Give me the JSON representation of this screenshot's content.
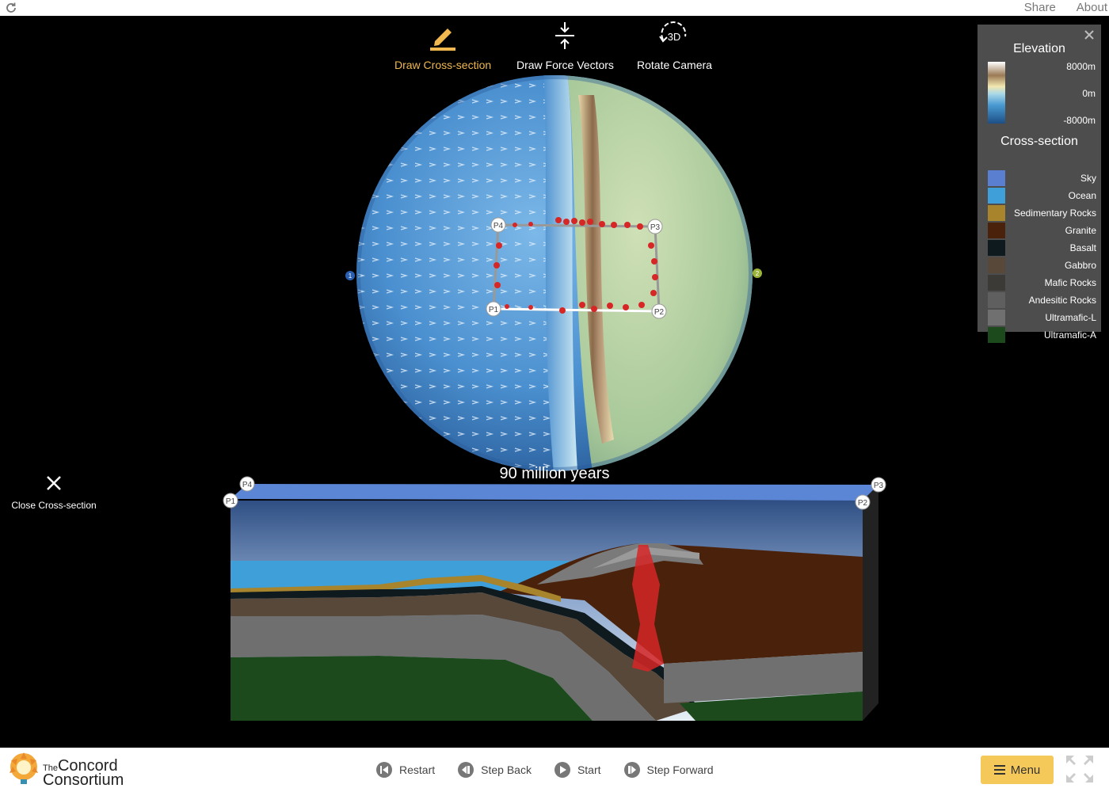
{
  "topbar": {
    "share": "Share",
    "about": "About",
    "reload_icon": "reload-icon"
  },
  "toolbar": {
    "draw_cross_section": "Draw Cross-section",
    "draw_force_vectors": "Draw Force Vectors",
    "rotate_camera": "Rotate Camera",
    "rotate_badge": "3D"
  },
  "globe": {
    "boundary_points": [
      "P1",
      "P2",
      "P3",
      "P4"
    ],
    "plate_markers": [
      "1",
      "2"
    ]
  },
  "age_label": "90 million years",
  "close_cross_section": "Close Cross-section",
  "cross_section": {
    "corner_points": [
      "P1",
      "P2",
      "P3",
      "P4"
    ]
  },
  "legend": {
    "elevation_title": "Elevation",
    "elevation_ticks": [
      "8000m",
      "0m",
      "-8000m"
    ],
    "cross_section_title": "Cross-section",
    "items": [
      {
        "label": "Sky",
        "color": "#5b7fd0"
      },
      {
        "label": "Ocean",
        "color": "#3f9fd8"
      },
      {
        "label": "Sedimentary Rocks",
        "color": "#a8842c"
      },
      {
        "label": "Granite",
        "color": "#4a220c"
      },
      {
        "label": "Basalt",
        "color": "#0e1a1e"
      },
      {
        "label": "Gabbro",
        "color": "#57483a"
      },
      {
        "label": "Mafic Rocks",
        "color": "#3b3a37"
      },
      {
        "label": "Andesitic Rocks",
        "color": "#5f5f5f"
      },
      {
        "label": "Ultramafic-L",
        "color": "#707070"
      },
      {
        "label": "Ultramafic-A",
        "color": "#1d4a1d"
      }
    ]
  },
  "logo": {
    "line1_small": "The",
    "line1": "Concord",
    "line2": "Consortium"
  },
  "controls": {
    "restart": "Restart",
    "step_back": "Step Back",
    "start": "Start",
    "step_forward": "Step Forward"
  },
  "menu": {
    "label": "Menu"
  },
  "colors": {
    "accent": "#f0b84e",
    "menu_bg": "#f5c85a"
  }
}
